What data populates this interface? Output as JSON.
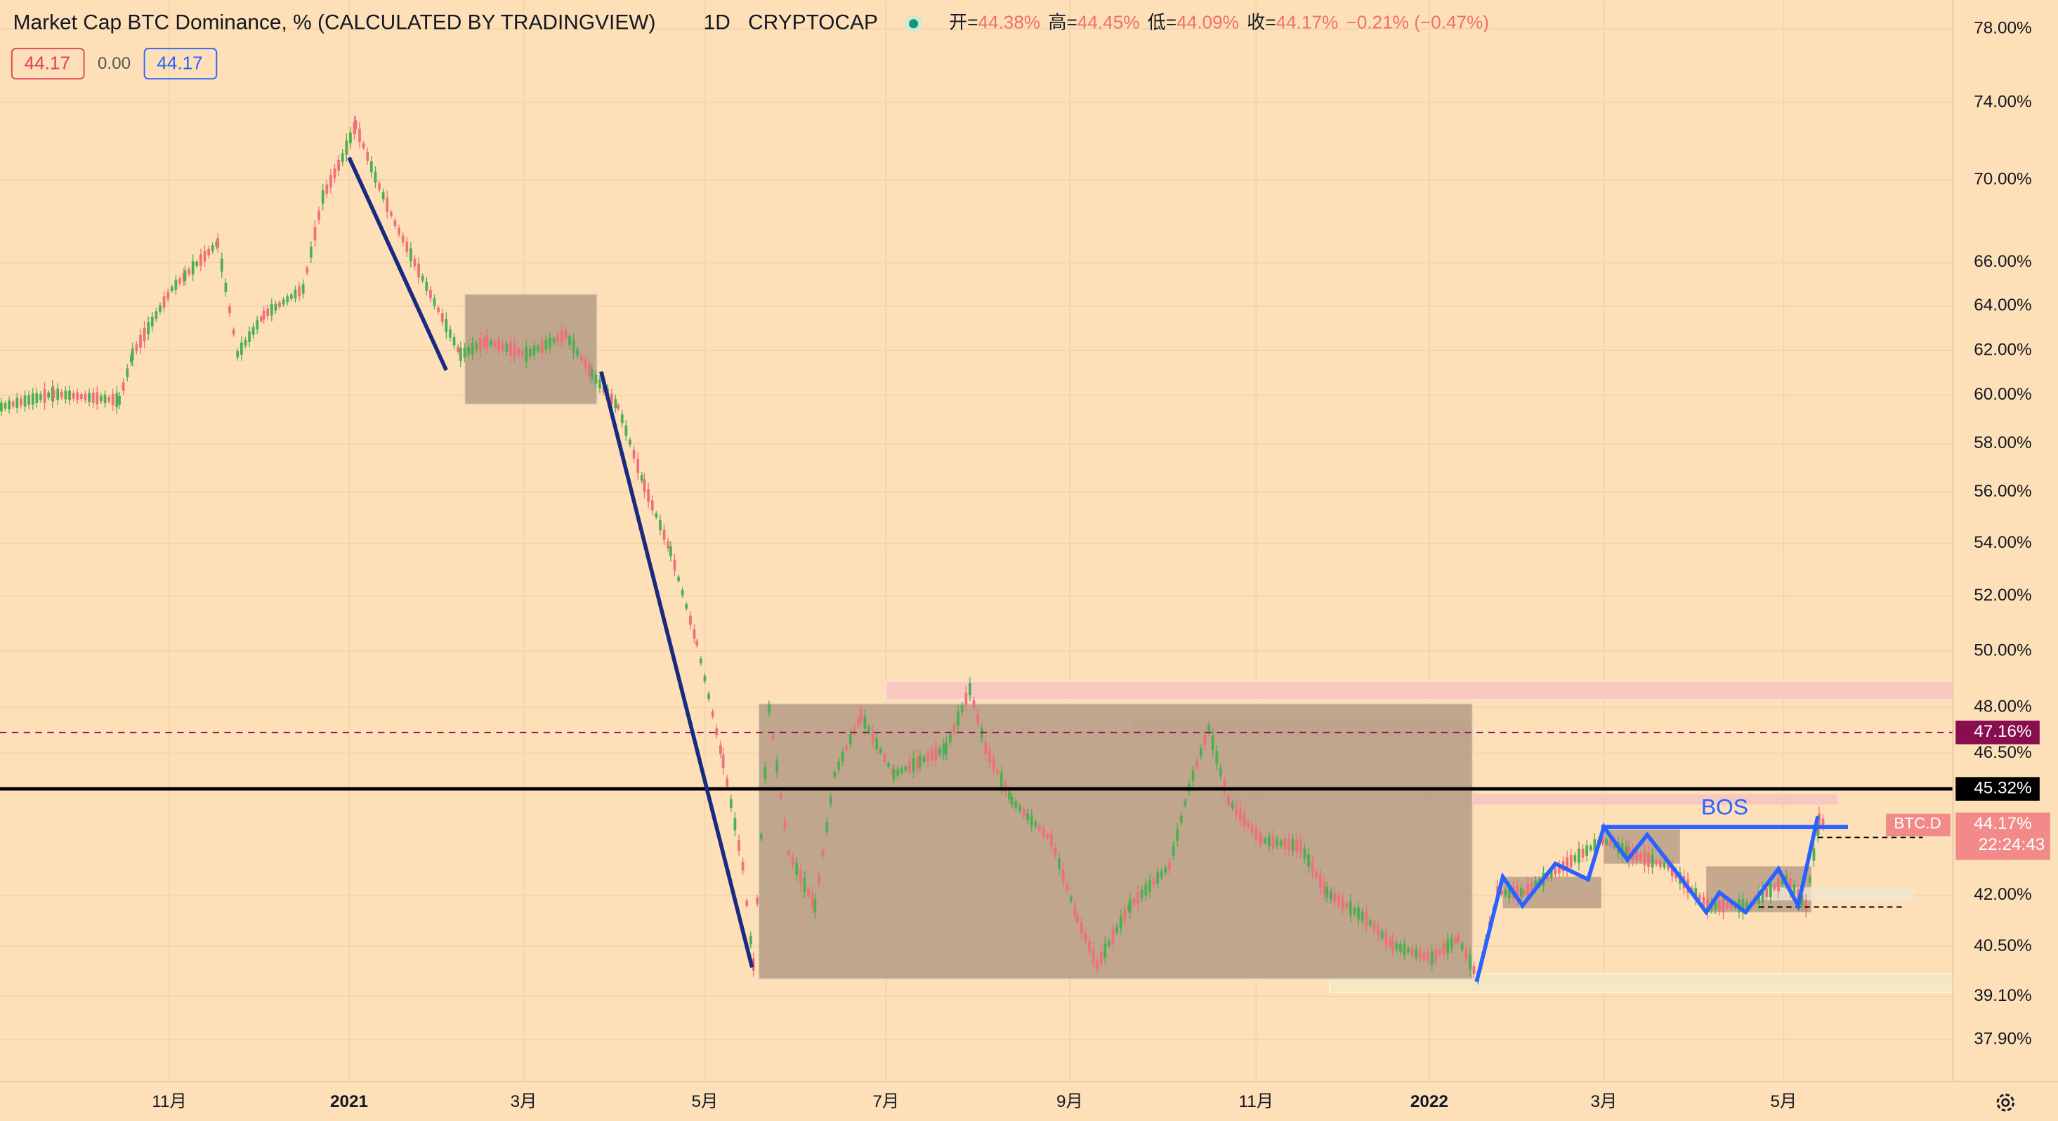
{
  "header": {
    "title": "Market Cap BTC Dominance, % (CALCULATED BY TRADINGVIEW)",
    "interval": "1D",
    "exchange": "CRYPTOCAP",
    "ohlc": [
      {
        "label": "开=",
        "value": "44.38%"
      },
      {
        "label": "高=",
        "value": "44.45%"
      },
      {
        "label": "低=",
        "value": "44.09%"
      },
      {
        "label": "收=",
        "value": "44.17%"
      }
    ],
    "change": "−0.21% (−0.47%)"
  },
  "legend": [
    "44.17",
    "0.00",
    "44.17"
  ],
  "price_axis": [
    "78.00%",
    "74.00%",
    "70.00%",
    "66.00%",
    "64.00%",
    "62.00%",
    "60.00%",
    "58.00%",
    "56.00%",
    "54.00%",
    "52.00%",
    "50.00%",
    "48.00%",
    "46.50%",
    "42.00%",
    "40.50%",
    "39.10%",
    "37.90%"
  ],
  "time_axis": [
    "11月",
    "2021",
    "3月",
    "5月",
    "7月",
    "9月",
    "11月",
    "2022",
    "3月",
    "5月"
  ],
  "markers": {
    "resistance": "47.16%",
    "support": "45.32%",
    "last": "44.17%",
    "countdown": "22:24:43",
    "symbol": "BTC.D"
  },
  "annotation": "BOS"
}
